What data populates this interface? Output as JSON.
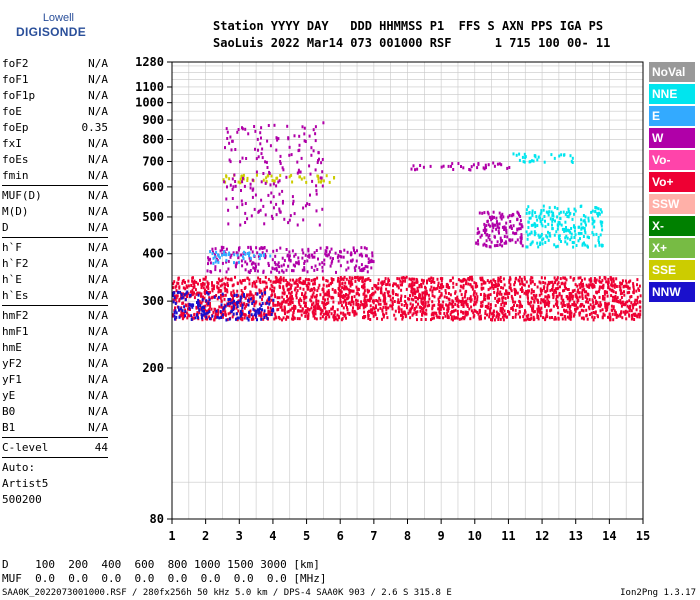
{
  "logo": {
    "line1": "Lowell",
    "line2": "DIGISONDE"
  },
  "header": {
    "line1": "Station YYYY DAY   DDD HHMMSS P1  FFS S AXN PPS IGA PS",
    "line2": "SaoLuis 2022 Mar14 073 001000 RSF      1 715 100 00- 11"
  },
  "params": {
    "group1": [
      {
        "name": "foF2",
        "value": "N/A"
      },
      {
        "name": "foF1",
        "value": "N/A"
      },
      {
        "name": "foF1p",
        "value": "N/A"
      },
      {
        "name": "foE",
        "value": "N/A"
      },
      {
        "name": "foEp",
        "value": "0.35"
      },
      {
        "name": "fxI",
        "value": "N/A"
      },
      {
        "name": "foEs",
        "value": "N/A"
      },
      {
        "name": "fmin",
        "value": "N/A"
      }
    ],
    "group2": [
      {
        "name": "MUF(D)",
        "value": "N/A"
      },
      {
        "name": "M(D)",
        "value": "N/A"
      },
      {
        "name": "D",
        "value": "N/A"
      }
    ],
    "group3": [
      {
        "name": "h`F",
        "value": "N/A"
      },
      {
        "name": "h`F2",
        "value": "N/A"
      },
      {
        "name": "h`E",
        "value": "N/A"
      },
      {
        "name": "h`Es",
        "value": "N/A"
      }
    ],
    "group4": [
      {
        "name": "hmF2",
        "value": "N/A"
      },
      {
        "name": "hmF1",
        "value": "N/A"
      },
      {
        "name": "hmE",
        "value": "N/A"
      },
      {
        "name": "yF2",
        "value": "N/A"
      },
      {
        "name": "yF1",
        "value": "N/A"
      },
      {
        "name": "yE",
        "value": "N/A"
      },
      {
        "name": "B0",
        "value": "N/A"
      },
      {
        "name": "B1",
        "value": "N/A"
      }
    ],
    "clevel": {
      "name": "C-level",
      "value": "44"
    },
    "auto": [
      "Auto:",
      "Artist5",
      "500200"
    ]
  },
  "legend": [
    {
      "label": "NoVal",
      "color": "#999999"
    },
    {
      "label": "NNE",
      "color": "#00e5ee"
    },
    {
      "label": "E",
      "color": "#33aaff"
    },
    {
      "label": "W",
      "color": "#b000a8"
    },
    {
      "label": "Vo-",
      "color": "#ff44aa"
    },
    {
      "label": "Vo+",
      "color": "#ee0033"
    },
    {
      "label": "SSW",
      "color": "#ffb0a8"
    },
    {
      "label": "X-",
      "color": "#008000"
    },
    {
      "label": "X+",
      "color": "#77bb44"
    },
    {
      "label": "SSE",
      "color": "#cccc00"
    },
    {
      "label": "NNW",
      "color": "#1a10cc"
    }
  ],
  "bottom": {
    "line1": "D    100  200  400  600  800 1000 1500 3000 [km]",
    "line2": "MUF  0.0  0.0  0.0  0.0  0.0  0.0  0.0  0.0 [MHz]"
  },
  "footer": {
    "left": "SAA0K_2022073001000.RSF / 280fx256h 50 kHz 5.0 km / DPS-4 SAA0K 903 / 2.6 S 315.8 E",
    "right": "Ion2Png 1.3.17"
  },
  "chart_data": {
    "type": "scatter",
    "title": "",
    "xlabel": "",
    "ylabel": "",
    "xlim": [
      1,
      15
    ],
    "ylim": [
      80,
      1280
    ],
    "x_ticks": [
      "1",
      "2",
      "3",
      "4",
      "5",
      "6",
      "7",
      "8",
      "9",
      "10",
      "11",
      "12",
      "13",
      "14",
      "15"
    ],
    "y_ticks": [
      "80",
      "200",
      "300",
      "400",
      "500",
      "600",
      "700",
      "800",
      "900",
      "1000",
      "1100",
      "1280"
    ],
    "grid": true,
    "y_scale": "log",
    "echo_regions": [
      {
        "color": "#ee0033",
        "f": [
          1.0,
          14.9
        ],
        "h": [
          270,
          350
        ],
        "density": 1.0
      },
      {
        "color": "#b000a8",
        "f": [
          10.0,
          11.4
        ],
        "h": [
          420,
          520
        ],
        "density": 0.7
      },
      {
        "color": "#00e5ee",
        "f": [
          11.5,
          13.8
        ],
        "h": [
          420,
          540
        ],
        "density": 0.6
      },
      {
        "color": "#b000a8",
        "f": [
          2.0,
          7.0
        ],
        "h": [
          360,
          420
        ],
        "density": 0.5
      },
      {
        "color": "#cccc00",
        "f": [
          2.5,
          5.8
        ],
        "h": [
          620,
          650
        ],
        "density": 0.5
      },
      {
        "color": "#b000a8",
        "f": [
          2.5,
          5.5
        ],
        "h": [
          480,
          900
        ],
        "density": 0.15
      },
      {
        "color": "#b000a8",
        "f": [
          8.0,
          11.0
        ],
        "h": [
          670,
          700
        ],
        "density": 0.4
      },
      {
        "color": "#00e5ee",
        "f": [
          11.0,
          13.0
        ],
        "h": [
          700,
          740
        ],
        "density": 0.4
      },
      {
        "color": "#1a10cc",
        "f": [
          1.0,
          4.0
        ],
        "h": [
          270,
          320
        ],
        "density": 0.5
      },
      {
        "color": "#33aaff",
        "f": [
          2.0,
          4.0
        ],
        "h": [
          380,
          410
        ],
        "density": 0.4
      }
    ]
  }
}
